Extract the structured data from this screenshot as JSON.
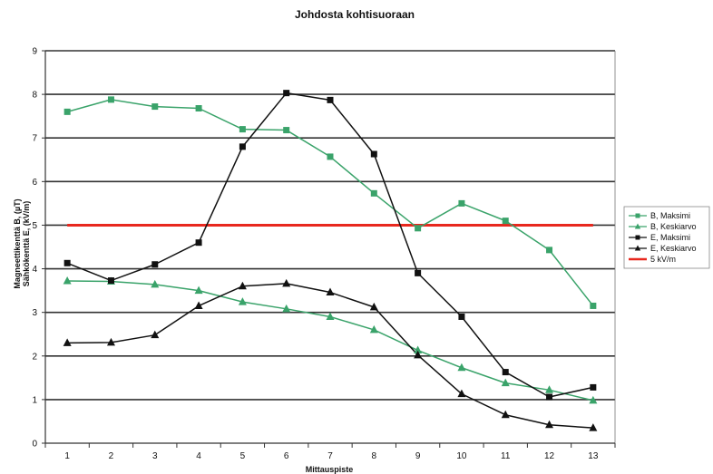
{
  "chart_data": {
    "type": "line",
    "title": "Johdosta kohtisuoraan",
    "xlabel": "Mittauspiste",
    "ylabel_line1": "Magneettikenttä B, (µT)",
    "ylabel_line2": "Sähkökenttä E, (kV/m)",
    "x": [
      1,
      2,
      3,
      4,
      5,
      6,
      7,
      8,
      9,
      10,
      11,
      12,
      13
    ],
    "ylim": [
      0,
      9
    ],
    "yticks": [
      0,
      1,
      2,
      3,
      4,
      5,
      6,
      7,
      8,
      9
    ],
    "grid": true,
    "legend_position": "right",
    "series": [
      {
        "name": "B, Maksimi",
        "color": "#3aa36a",
        "marker": "square",
        "values": [
          7.6,
          7.88,
          7.72,
          7.68,
          7.2,
          7.18,
          6.57,
          5.73,
          4.93,
          5.5,
          5.1,
          4.43,
          3.15
        ]
      },
      {
        "name": "B, Keskiarvo",
        "color": "#3aa36a",
        "marker": "triangle",
        "values": [
          3.72,
          3.71,
          3.64,
          3.5,
          3.24,
          3.08,
          2.9,
          2.6,
          2.13,
          1.73,
          1.38,
          1.22,
          0.98
        ]
      },
      {
        "name": "E, Maksimi",
        "color": "#111111",
        "marker": "square",
        "values": [
          4.13,
          3.73,
          4.1,
          4.6,
          6.8,
          8.03,
          7.87,
          6.63,
          3.9,
          2.9,
          1.63,
          1.06,
          1.28
        ]
      },
      {
        "name": "E, Keskiarvo",
        "color": "#111111",
        "marker": "triangle",
        "values": [
          2.3,
          2.31,
          2.48,
          3.15,
          3.6,
          3.66,
          3.46,
          3.12,
          2.02,
          1.13,
          0.65,
          0.42,
          0.35
        ]
      },
      {
        "name": "5 kV/m",
        "color": "#e8281e",
        "marker": "none",
        "values": [
          5,
          5,
          5,
          5,
          5,
          5,
          5,
          5,
          5,
          5,
          5,
          5,
          5
        ]
      }
    ]
  }
}
